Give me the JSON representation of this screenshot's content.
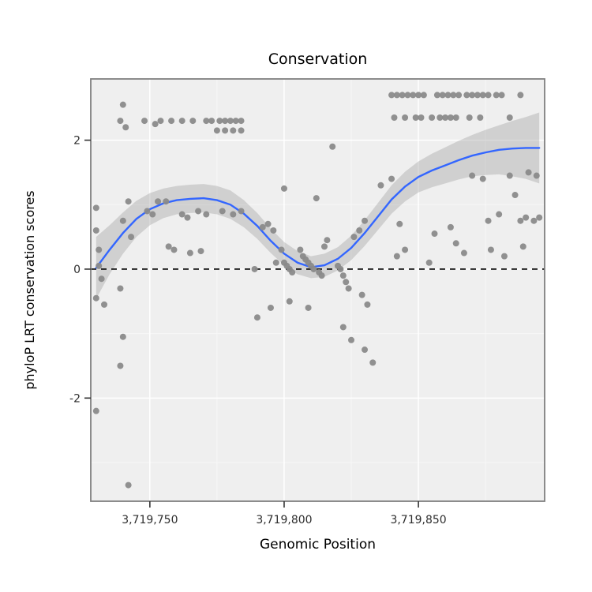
{
  "chart_data": {
    "type": "scatter",
    "title": "Conservation",
    "xlabel": "Genomic Position",
    "ylabel": "phyloP LRT conservation scores",
    "xlim": [
      3719728,
      3719897
    ],
    "ylim": [
      -3.6,
      2.95
    ],
    "x_ticks": [
      {
        "value": 3719750,
        "label": "3,719,750"
      },
      {
        "value": 3719800,
        "label": "3,719,800"
      },
      {
        "value": 3719850,
        "label": "3,719,850"
      }
    ],
    "x_minor_ticks": [
      3719775,
      3719825,
      3719875
    ],
    "y_ticks": [
      {
        "value": -2,
        "label": "-2"
      },
      {
        "value": 0,
        "label": "0"
      },
      {
        "value": 2,
        "label": "2"
      }
    ],
    "y_minor_ticks": [
      -3,
      -1,
      1
    ],
    "hline": {
      "y": 0,
      "style": "dashed",
      "color": "#000000"
    },
    "colors": {
      "point": "#8a8a8a",
      "smooth_line": "#3366FF",
      "ribbon": "#9e9e9e",
      "panel_bg": "#efefef",
      "grid_major": "#ffffff",
      "grid_minor": "#f7f7f7",
      "panel_border": "#808080",
      "tick": "#333333"
    },
    "points": [
      [
        3719730,
        0.95
      ],
      [
        3719730,
        0.6
      ],
      [
        3719731,
        0.3
      ],
      [
        3719731,
        0.05
      ],
      [
        3719732,
        -0.15
      ],
      [
        3719730,
        -0.45
      ],
      [
        3719733,
        -0.55
      ],
      [
        3719730,
        -2.2
      ],
      [
        3719740,
        2.55
      ],
      [
        3719739,
        2.3
      ],
      [
        3719741,
        2.2
      ],
      [
        3719742,
        1.05
      ],
      [
        3719740,
        0.75
      ],
      [
        3719743,
        0.5
      ],
      [
        3719739,
        -0.3
      ],
      [
        3719740,
        -1.05
      ],
      [
        3719739,
        -1.5
      ],
      [
        3719742,
        -3.35
      ],
      [
        3719748,
        2.3
      ],
      [
        3719752,
        2.25
      ],
      [
        3719749,
        0.9
      ],
      [
        3719751,
        0.85
      ],
      [
        3719753,
        1.05
      ],
      [
        3719754,
        2.3
      ],
      [
        3719758,
        2.3
      ],
      [
        3719762,
        2.3
      ],
      [
        3719766,
        2.3
      ],
      [
        3719771,
        2.3
      ],
      [
        3719773,
        2.3
      ],
      [
        3719776,
        2.3
      ],
      [
        3719778,
        2.3
      ],
      [
        3719780,
        2.3
      ],
      [
        3719782,
        2.3
      ],
      [
        3719784,
        2.3
      ],
      [
        3719775,
        2.15
      ],
      [
        3719778,
        2.15
      ],
      [
        3719781,
        2.15
      ],
      [
        3719784,
        2.15
      ],
      [
        3719756,
        1.05
      ],
      [
        3719757,
        0.35
      ],
      [
        3719759,
        0.3
      ],
      [
        3719762,
        0.85
      ],
      [
        3719764,
        0.8
      ],
      [
        3719765,
        0.25
      ],
      [
        3719768,
        0.9
      ],
      [
        3719769,
        0.28
      ],
      [
        3719771,
        0.85
      ],
      [
        3719777,
        0.9
      ],
      [
        3719781,
        0.85
      ],
      [
        3719784,
        0.9
      ],
      [
        3719789,
        0.0
      ],
      [
        3719790,
        -0.75
      ],
      [
        3719792,
        0.65
      ],
      [
        3719794,
        0.7
      ],
      [
        3719795,
        -0.6
      ],
      [
        3719796,
        0.6
      ],
      [
        3719797,
        0.1
      ],
      [
        3719800,
        1.25
      ],
      [
        3719799,
        0.3
      ],
      [
        3719800,
        0.1
      ],
      [
        3719801,
        0.05
      ],
      [
        3719802,
        0.0
      ],
      [
        3719803,
        -0.05
      ],
      [
        3719802,
        -0.5
      ],
      [
        3719812,
        1.1
      ],
      [
        3719818,
        1.9
      ],
      [
        3719806,
        0.3
      ],
      [
        3719807,
        0.2
      ],
      [
        3719808,
        0.15
      ],
      [
        3719809,
        0.1
      ],
      [
        3719810,
        0.05
      ],
      [
        3719811,
        0.0
      ],
      [
        3719813,
        -0.05
      ],
      [
        3719814,
        -0.1
      ],
      [
        3719815,
        0.35
      ],
      [
        3719816,
        0.45
      ],
      [
        3719809,
        -0.6
      ],
      [
        3719820,
        0.05
      ],
      [
        3719821,
        0.0
      ],
      [
        3719822,
        -0.1
      ],
      [
        3719823,
        -0.2
      ],
      [
        3719824,
        -0.3
      ],
      [
        3719822,
        -0.9
      ],
      [
        3719825,
        -1.1
      ],
      [
        3719826,
        0.5
      ],
      [
        3719828,
        0.6
      ],
      [
        3719830,
        0.75
      ],
      [
        3719829,
        -0.4
      ],
      [
        3719831,
        -0.55
      ],
      [
        3719830,
        -1.25
      ],
      [
        3719833,
        -1.45
      ],
      [
        3719836,
        1.3
      ],
      [
        3719840,
        2.7
      ],
      [
        3719842,
        2.7
      ],
      [
        3719844,
        2.7
      ],
      [
        3719846,
        2.7
      ],
      [
        3719841,
        2.35
      ],
      [
        3719845,
        2.35
      ],
      [
        3719840,
        1.4
      ],
      [
        3719843,
        0.7
      ],
      [
        3719845,
        0.3
      ],
      [
        3719842,
        0.2
      ],
      [
        3719848,
        2.7
      ],
      [
        3719850,
        2.7
      ],
      [
        3719852,
        2.7
      ],
      [
        3719857,
        2.7
      ],
      [
        3719849,
        2.35
      ],
      [
        3719851,
        2.35
      ],
      [
        3719855,
        2.35
      ],
      [
        3719858,
        2.35
      ],
      [
        3719854,
        0.1
      ],
      [
        3719856,
        0.55
      ],
      [
        3719859,
        2.7
      ],
      [
        3719861,
        2.7
      ],
      [
        3719863,
        2.7
      ],
      [
        3719865,
        2.7
      ],
      [
        3719868,
        2.7
      ],
      [
        3719870,
        2.7
      ],
      [
        3719860,
        2.35
      ],
      [
        3719862,
        2.35
      ],
      [
        3719864,
        2.35
      ],
      [
        3719869,
        2.35
      ],
      [
        3719862,
        0.65
      ],
      [
        3719864,
        0.4
      ],
      [
        3719867,
        0.25
      ],
      [
        3719870,
        1.45
      ],
      [
        3719872,
        2.7
      ],
      [
        3719874,
        2.7
      ],
      [
        3719876,
        2.7
      ],
      [
        3719879,
        2.7
      ],
      [
        3719881,
        2.7
      ],
      [
        3719873,
        2.35
      ],
      [
        3719874,
        1.4
      ],
      [
        3719876,
        0.75
      ],
      [
        3719877,
        0.3
      ],
      [
        3719880,
        0.85
      ],
      [
        3719882,
        0.2
      ],
      [
        3719888,
        2.7
      ],
      [
        3719884,
        2.35
      ],
      [
        3719884,
        1.45
      ],
      [
        3719886,
        1.15
      ],
      [
        3719888,
        0.75
      ],
      [
        3719890,
        0.8
      ],
      [
        3719889,
        0.35
      ],
      [
        3719891,
        1.5
      ],
      [
        3719893,
        0.75
      ],
      [
        3719895,
        0.8
      ],
      [
        3719894,
        1.45
      ]
    ],
    "smooth": [
      [
        3719730,
        0.02,
        -0.46,
        0.5
      ],
      [
        3719735,
        0.3,
        -0.08,
        0.68
      ],
      [
        3719740,
        0.56,
        0.24,
        0.88
      ],
      [
        3719745,
        0.78,
        0.5,
        1.06
      ],
      [
        3719750,
        0.93,
        0.68,
        1.18
      ],
      [
        3719755,
        1.02,
        0.79,
        1.25
      ],
      [
        3719760,
        1.07,
        0.85,
        1.29
      ],
      [
        3719765,
        1.09,
        0.87,
        1.31
      ],
      [
        3719770,
        1.1,
        0.88,
        1.32
      ],
      [
        3719775,
        1.07,
        0.85,
        1.29
      ],
      [
        3719780,
        1.0,
        0.78,
        1.22
      ],
      [
        3719785,
        0.86,
        0.65,
        1.07
      ],
      [
        3719790,
        0.67,
        0.47,
        0.87
      ],
      [
        3719795,
        0.44,
        0.25,
        0.63
      ],
      [
        3719800,
        0.24,
        0.06,
        0.42
      ],
      [
        3719805,
        0.1,
        -0.08,
        0.28
      ],
      [
        3719810,
        0.03,
        -0.14,
        0.2
      ],
      [
        3719815,
        0.06,
        -0.12,
        0.24
      ],
      [
        3719820,
        0.16,
        -0.02,
        0.34
      ],
      [
        3719825,
        0.33,
        0.14,
        0.52
      ],
      [
        3719830,
        0.56,
        0.36,
        0.76
      ],
      [
        3719835,
        0.82,
        0.61,
        1.03
      ],
      [
        3719840,
        1.08,
        0.86,
        1.3
      ],
      [
        3719845,
        1.28,
        1.05,
        1.51
      ],
      [
        3719850,
        1.43,
        1.19,
        1.67
      ],
      [
        3719855,
        1.53,
        1.27,
        1.79
      ],
      [
        3719860,
        1.61,
        1.33,
        1.89
      ],
      [
        3719865,
        1.69,
        1.39,
        1.99
      ],
      [
        3719870,
        1.76,
        1.44,
        2.08
      ],
      [
        3719875,
        1.81,
        1.46,
        2.16
      ],
      [
        3719880,
        1.85,
        1.47,
        2.23
      ],
      [
        3719885,
        1.87,
        1.44,
        2.3
      ],
      [
        3719890,
        1.88,
        1.4,
        2.36
      ],
      [
        3719895,
        1.88,
        1.33,
        2.43
      ]
    ]
  }
}
